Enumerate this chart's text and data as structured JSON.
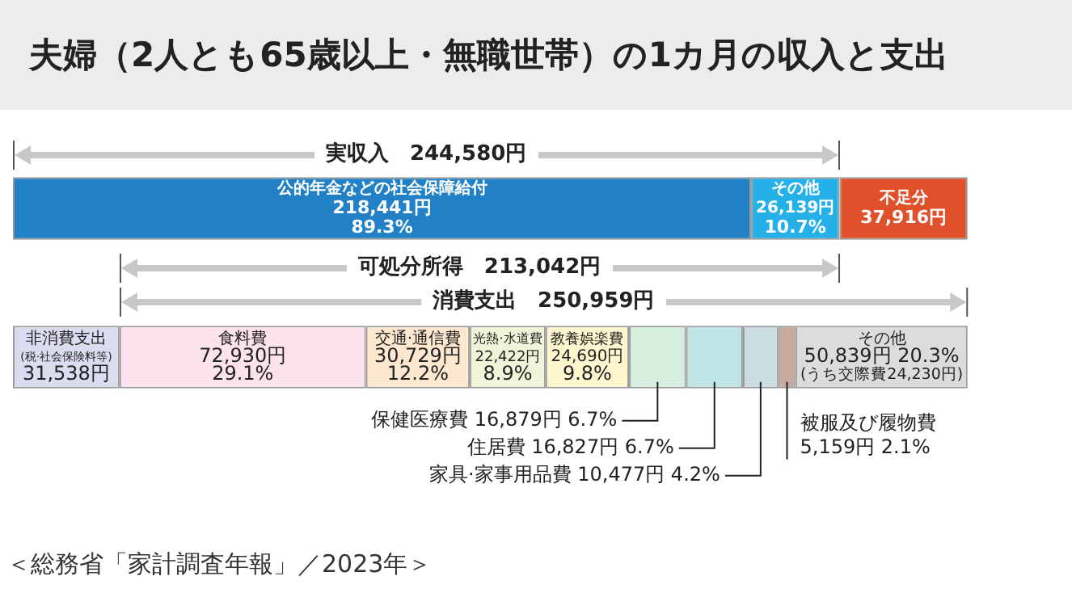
{
  "chart_data": {
    "type": "bar",
    "orientation": "horizontal",
    "stacked": true,
    "legend": false,
    "tick_labels": false,
    "title": "夫婦（2人とも65歳以上・無職世帯）の1カ月の収入と支出",
    "categories": [
      null,
      null
    ],
    "series": [
      {
        "name": "公的年金などの社会保障給付",
        "color": "#2180c6",
        "values": [
          218441,
          null
        ],
        "value_labels": [
          "218,441円\n89.3%",
          null
        ]
      },
      {
        "name": "その他",
        "color": "#26b0e8",
        "values": [
          26139,
          null
        ],
        "value_labels": [
          "26,139円\n10.7%",
          null
        ]
      },
      {
        "name": "不足分",
        "color": "#e0512b",
        "values": [
          37916,
          null
        ],
        "value_labels": [
          "37,916円",
          null
        ]
      },
      {
        "name": "非消費支出\n(税·社会保険料等)",
        "color": "#dcdcf0",
        "values": [
          null,
          31538
        ],
        "value_labels": [
          null,
          "31,538円"
        ]
      },
      {
        "name": "食料費",
        "color": "#fbe2ec",
        "values": [
          null,
          72930
        ],
        "value_labels": [
          null,
          "72,930円\n29.1%"
        ]
      },
      {
        "name": "交通·通信費",
        "color": "#fde8cf",
        "values": [
          null,
          30729
        ],
        "value_labels": [
          null,
          "30,729円\n12.2%"
        ]
      },
      {
        "name": "光熱·水道費",
        "color": "#eef5d8",
        "values": [
          null,
          22422
        ],
        "value_labels": [
          null,
          "22,422円\n8.9%"
        ]
      },
      {
        "name": "教養娯楽費",
        "color": "#fdf6cf",
        "values": [
          null,
          24690
        ],
        "value_labels": [
          null,
          "24,690円\n9.8%"
        ]
      },
      {
        "name": "保健医療費",
        "color": "#d5eedd",
        "values": [
          null,
          16879
        ],
        "value_labels": [
          null,
          "16,879円 6.7%"
        ]
      },
      {
        "name": "住居費",
        "color": "#bfe5e6",
        "values": [
          null,
          16827
        ],
        "value_labels": [
          null,
          "16,827円 6.7%"
        ]
      },
      {
        "name": "家具·家事用品費",
        "color": "#cadbe2",
        "values": [
          null,
          10477
        ],
        "value_labels": [
          null,
          "10,477円 4.2%"
        ]
      },
      {
        "name": "被服及び履物費",
        "color": "#c8aaa0",
        "values": [
          null,
          5159
        ],
        "value_labels": [
          null,
          "5,159円 2.1%"
        ]
      },
      {
        "name": "その他",
        "color": "#dcdcdc",
        "values": [
          null,
          50839
        ],
        "value_labels": [
          null,
          "50,839円 20.3%\n(うち交際費24,230円)"
        ]
      }
    ],
    "annotations": [
      "実収入　244,580円",
      "可処分所得　213,042円",
      "消費支出　250,959円",
      "＜総務省「家計調査年報」／2023年＞"
    ]
  }
}
